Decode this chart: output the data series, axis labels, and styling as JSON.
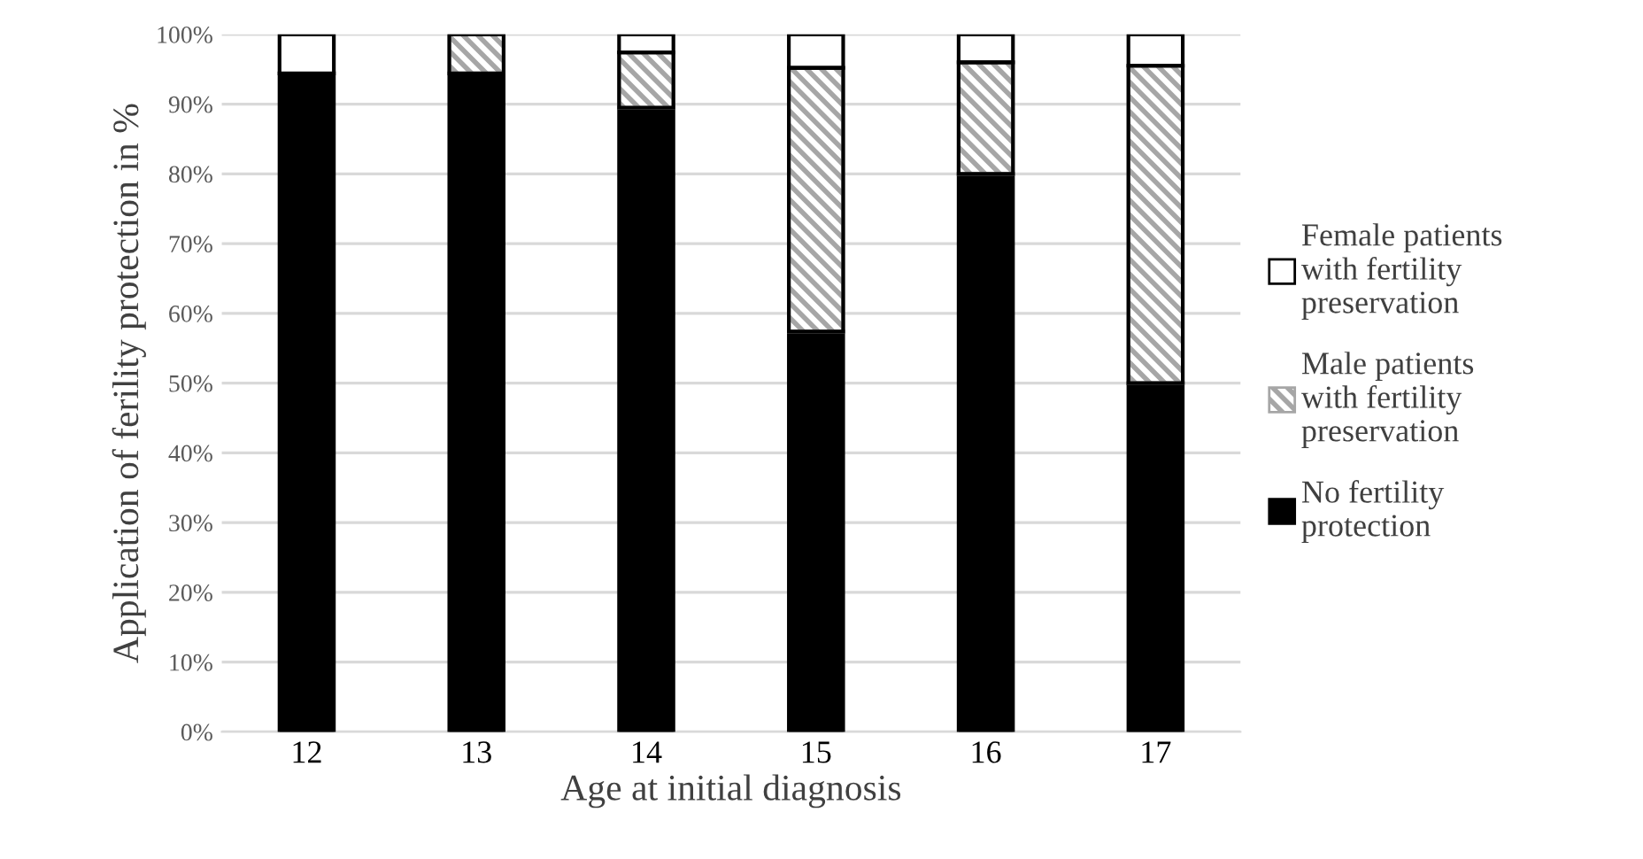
{
  "chart_data": {
    "type": "bar",
    "stacked": true,
    "xlabel": "Age at initial diagnosis",
    "ylabel": "Application of ferility protection in %",
    "categories": [
      "12",
      "13",
      "14",
      "15",
      "16",
      "17"
    ],
    "series": [
      {
        "name": "No fertility protection",
        "color": "#000000",
        "values": [
          94.4,
          94.4,
          89.5,
          57.4,
          80,
          50
        ]
      },
      {
        "name": "Male patients with fertility preservation",
        "color": "#a6a6a6",
        "values": [
          0,
          5.6,
          7.9,
          37.8,
          16,
          45.5
        ]
      },
      {
        "name": "Female patients with fertility preservation",
        "color": "#ffffff",
        "values": [
          5.6,
          0,
          2.6,
          4.8,
          4,
          4.5
        ]
      }
    ],
    "ylim": [
      0,
      100
    ],
    "yticks": [
      {
        "value": 0,
        "label": "0%"
      },
      {
        "value": 10,
        "label": "10%"
      },
      {
        "value": 20,
        "label": "20%"
      },
      {
        "value": 30,
        "label": "30%"
      },
      {
        "value": 40,
        "label": "40%"
      },
      {
        "value": 50,
        "label": "50%"
      },
      {
        "value": 60,
        "label": "60%"
      },
      {
        "value": 70,
        "label": "70%"
      },
      {
        "value": 80,
        "label": "80%"
      },
      {
        "value": 90,
        "label": "90%"
      },
      {
        "value": 100,
        "label": "100%"
      }
    ],
    "grid": "y",
    "legend": "right"
  }
}
